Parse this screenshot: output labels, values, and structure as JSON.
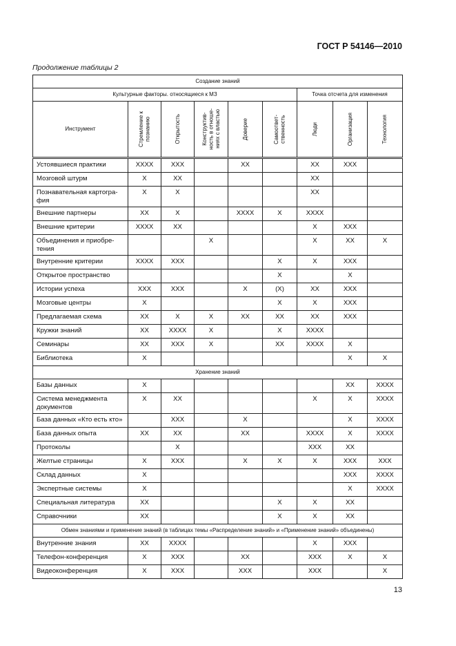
{
  "header": {
    "standard": "ГОСТ Р 54146—2010",
    "caption": "Продолжение таблицы 2"
  },
  "table": {
    "section_create": "Создание знаний",
    "group_cultural": "Культурные факторы. относящиеся к МЗ",
    "group_change": "Точка отсчета для изменения",
    "col_instrument": "Инструмент",
    "columns": [
      "Стремление к\nпознанию",
      "Открытость",
      "Конструктив-\nность в отноше-\nниях с властью",
      "Доверие",
      "Самоответ-\nственность",
      "Люди",
      "Организация",
      "Технология"
    ],
    "create_rows": [
      [
        "Устоявшиеся практики",
        "XXXX",
        "XXX",
        "",
        "XX",
        "",
        "XX",
        "XXX",
        ""
      ],
      [
        "Мозговой штурм",
        "X",
        "XX",
        "",
        "",
        "",
        "XX",
        "",
        ""
      ],
      [
        "Познавательная картогра-фия",
        "X",
        "X",
        "",
        "",
        "",
        "XX",
        "",
        ""
      ],
      [
        "Внешние партнеры",
        "XX",
        "X",
        "",
        "XXXX",
        "X",
        "XXXX",
        "",
        ""
      ],
      [
        "Внешние критерии",
        "XXXX",
        "XX",
        "",
        "",
        "",
        "X",
        "XXX",
        ""
      ],
      [
        "Объединения и приобре-тения",
        "",
        "",
        "X",
        "",
        "",
        "X",
        "XX",
        "X"
      ],
      [
        "Внутренние критерии",
        "XXXX",
        "XXX",
        "",
        "",
        "X",
        "X",
        "XXX",
        ""
      ],
      [
        "Открытое пространство",
        "",
        "",
        "",
        "",
        "X",
        "",
        "X",
        ""
      ],
      [
        "Истории успеха",
        "XXX",
        "XXX",
        "",
        "X",
        "(X)",
        "XX",
        "XXX",
        ""
      ],
      [
        "Мозговые центры",
        "X",
        "",
        "",
        "",
        "X",
        "X",
        "XXX",
        ""
      ],
      [
        "Предлагаемая схема",
        "XX",
        "X",
        "X",
        "XX",
        "XX",
        "XX",
        "XXX",
        ""
      ],
      [
        "Кружки знаний",
        "XX",
        "XXXX",
        "X",
        "",
        "X",
        "XXXX",
        "",
        ""
      ],
      [
        "Семинары",
        "XX",
        "XXX",
        "X",
        "",
        "XX",
        "XXXX",
        "X",
        ""
      ],
      [
        "Библиотека",
        "X",
        "",
        "",
        "",
        "",
        "",
        "X",
        "X"
      ]
    ],
    "section_store": "Хранение знаний",
    "store_rows": [
      [
        "Базы данных",
        "X",
        "",
        "",
        "",
        "",
        "",
        "XX",
        "XXXX"
      ],
      [
        "Система менеджмента документов",
        "X",
        "XX",
        "",
        "",
        "",
        "X",
        "X",
        "XXXX"
      ],
      [
        "База данных «Кто есть кто»",
        "",
        "XXX",
        "",
        "X",
        "",
        "",
        "X",
        "XXXX"
      ],
      [
        "База данных опыта",
        "XX",
        "XX",
        "",
        "XX",
        "",
        "XXXX",
        "X",
        "XXXX"
      ],
      [
        "Протоколы",
        "",
        "X",
        "",
        "",
        "",
        "XXX",
        "XX",
        ""
      ],
      [
        "Желтые страницы",
        "X",
        "XXX",
        "",
        "X",
        "X",
        "X",
        "XXX",
        "XXX"
      ],
      [
        "Склад данных",
        "X",
        "",
        "",
        "",
        "",
        "",
        "XXX",
        "XXXX"
      ],
      [
        "Экспертные системы",
        "X",
        "",
        "",
        "",
        "",
        "",
        "X",
        "XXXX"
      ],
      [
        "Специальная литература",
        "XX",
        "",
        "",
        "",
        "X",
        "X",
        "XX",
        ""
      ],
      [
        "Справочники",
        "XX",
        "",
        "",
        "",
        "X",
        "X",
        "XX",
        ""
      ]
    ],
    "section_share": "Обмен знаниями и применение знаний (в таблицах темы «Распределение знаний» и «Применение знаний» объединены)",
    "share_rows": [
      [
        "Внутренние знания",
        "XX",
        "XXXX",
        "",
        "",
        "",
        "X",
        "XXX",
        ""
      ],
      [
        "Телефон-конференция",
        "X",
        "XXX",
        "",
        "XX",
        "",
        "XXX",
        "X",
        "X"
      ],
      [
        "Видеоконференция",
        "X",
        "XXX",
        "",
        "XXX",
        "",
        "XXX",
        "",
        "X"
      ]
    ]
  },
  "footer": {
    "page_number": "13"
  }
}
